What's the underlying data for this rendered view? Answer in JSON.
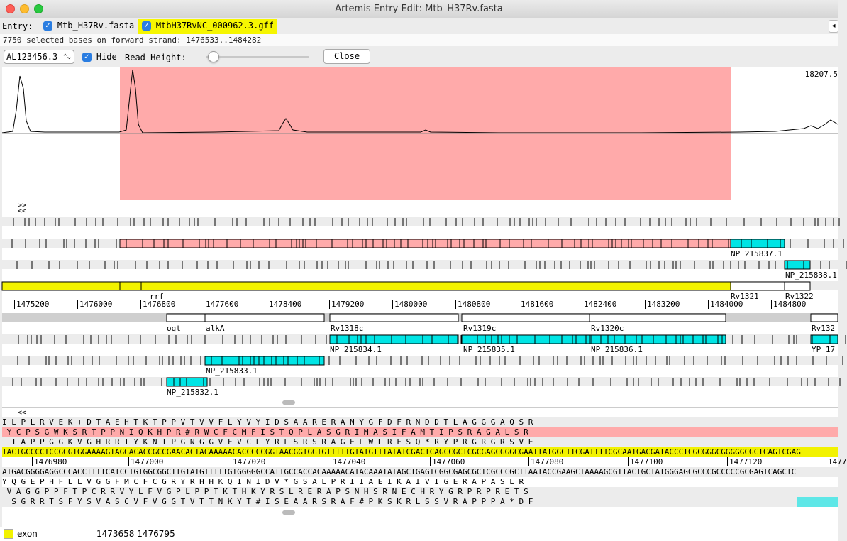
{
  "window": {
    "title": "Artemis Entry Edit: Mtb_H37Rv.fasta"
  },
  "entry_bar": {
    "label": "Entry:",
    "entries": [
      {
        "name": "Mtb_H37Rv.fasta",
        "checked": true
      },
      {
        "name": "MtbH37RvNC_000962.3.gff",
        "checked": true
      }
    ],
    "overflow_label": "◂"
  },
  "status": {
    "text": "7750 selected bases on forward strand: 1476533..1484282"
  },
  "bam_toolbar": {
    "reference": "AL123456.3",
    "hide_label": "Hide",
    "read_height_label": "Read Height:",
    "close_label": "Close"
  },
  "coverage": {
    "max_label": "18207.5"
  },
  "feature_view": {
    "scroll_fwd": ">>",
    "scroll_back": "<<",
    "ruler": [
      "1475200",
      "1476000",
      "1476800",
      "1477600",
      "1478400",
      "1479200",
      "1480000",
      "1480800",
      "1481600",
      "1482400",
      "1483200",
      "1484000",
      "1484800"
    ],
    "forward_labels": [
      "NP_215837.1",
      "NP_215838.1",
      "rrf",
      "Rv1321",
      "Rv1322"
    ],
    "reverse_labels": [
      "ogt",
      "alkA",
      "Rv1318c",
      "Rv1319c",
      "Rv1320c",
      "Rv132",
      "NP_215834.1",
      "NP_215835.1",
      "NP_215836.1",
      "YP_17",
      "NP_215833.1",
      "NP_215832.1"
    ]
  },
  "sequence_view": {
    "scroll_back": "<<",
    "frame_f1": "I L P L R V E K + D T A E H T K T P P V T V V F L Y V Y I D S A A R E R A N Y G F D F R N D D T L A G G G A Q S R",
    "frame_f2": " Y C P S G W K S R T P P N I Q K H P R # R W C F C M F I S T Q P L A S G R I M A S I F A M T I P S R A G A L S R",
    "frame_f3": "  T A P P G G K V G H R R T Y K N T P G N G G V F V C L Y R L S R S R A G E L W L R F S Q * R Y P R G R G R S V E",
    "forward_strand": "TACTGCCCCTCCGGGTGGAAAAGTAGGACACCGCCGAACACTACAAAAACACCCCCGGTAACGGTGGTGTTTTTGTATGTTTATATCGACTCAGCCGCTCGCGAGCGGGCGAATTATGGCTTCGATTTTCGCAATGACGATACCCTCGCGGGCGGGGGCGCTCAGTCGAG",
    "ruler": [
      "1476980",
      "1477000",
      "1477020",
      "1477040",
      "1477060",
      "1477080",
      "1477100",
      "1477120",
      "1477"
    ],
    "reverse_strand": "ATGACGGGGAGGCCCACCTTTTCATCCTGTGGCGGCTTGTATGTTTTTGTGGGGGCCATTGCCACCACAAAAACATACAAATATAGCTGAGTCGGCGAGCGCTCGCCCGCTTAATACCGAAGCTAAAAGCGTTACTGCTATGGGAGCGCCCGCCCCCGCGAGTCAGCTC",
    "frame_r1": "Y Q G E P H F L L V G G F M C F C G R Y R H H K Q I N I D V * G S A L P R I I A E I K A I V I G E R A P A S L R",
    "frame_r2": " V A G G P P F T P C R R V Y L F V G P L P P T K T H K Y R S L R E R A P S N H S R N E C H R Y G R P R P R E T S",
    "frame_r3": "  S G R R T S F Y S V A S C V F V G G T V T T N K Y T # I S E A A R S R A F # P K S K R L S S V R A P P P A * D F"
  },
  "legend": {
    "feature_type": "exon",
    "range": "1473658 1476795",
    "color": "#f2f200"
  },
  "colors": {
    "selection": "#ffaaaa",
    "cds": "#00e5e5",
    "gene": "#f2f200"
  }
}
